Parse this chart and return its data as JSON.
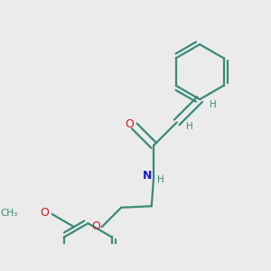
{
  "bg_color": "#ebebeb",
  "bond_color": "#3a8a78",
  "N_color": "#1a1acc",
  "O_color": "#cc1a1a",
  "line_width": 1.6,
  "figsize": [
    3.0,
    3.0
  ],
  "dpi": 100,
  "xlim": [
    0,
    3.0
  ],
  "ylim": [
    0,
    3.0
  ]
}
